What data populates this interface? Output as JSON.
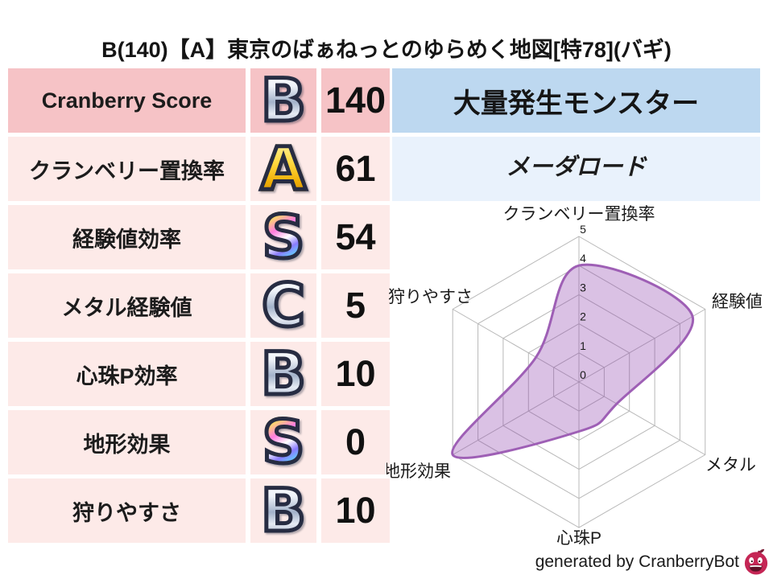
{
  "title": "B(140)【A】東京のばぁねっとのゆらめく地図[特78](バギ)",
  "stats_table": {
    "rows": [
      {
        "label": "Cranberry Score",
        "grade": "B",
        "grade_style": "silver",
        "value": "140"
      },
      {
        "label": "クランベリー置換率",
        "grade": "A",
        "grade_style": "gold",
        "value": "61"
      },
      {
        "label": "経験値効率",
        "grade": "S",
        "grade_style": "rainbow",
        "value": "54"
      },
      {
        "label": "メタル経験値",
        "grade": "C",
        "grade_style": "silver",
        "value": "5"
      },
      {
        "label": "心珠P効率",
        "grade": "B",
        "grade_style": "silver",
        "value": "10"
      },
      {
        "label": "地形効果",
        "grade": "S",
        "grade_style": "rainbow",
        "value": "0"
      },
      {
        "label": "狩りやすさ",
        "grade": "B",
        "grade_style": "silver",
        "value": "10"
      }
    ]
  },
  "monster_panel": {
    "header": "大量発生モンスター",
    "name": "メーダロード"
  },
  "chart_data": {
    "type": "radar",
    "categories": [
      "クランベリー置換率",
      "経験値",
      "メタル",
      "心珠P",
      "地形効果",
      "狩りやすさ"
    ],
    "values": [
      4,
      4.5,
      1.5,
      1.7,
      5,
      1.7
    ],
    "r_ticks": [
      "5",
      "4",
      "3",
      "2",
      "1",
      "0"
    ],
    "r_max": 5,
    "grid_color": "#b8b8b8",
    "line_color": "#9e5fb5",
    "fill_color": "#8e44ad",
    "fill_opacity": 0.33,
    "legend": "none",
    "grid": "on"
  },
  "footer": {
    "credit": "generated by CranberryBot",
    "icon": "cranberrybot-berry-icon"
  },
  "colors": {
    "row_highlight_pink": "#f6c3c6",
    "row_light_pink": "#fdeae8",
    "header_blue": "#bdd8f0",
    "monster_blue": "#e9f2fc",
    "radar_purple": "#9e5fb5"
  }
}
